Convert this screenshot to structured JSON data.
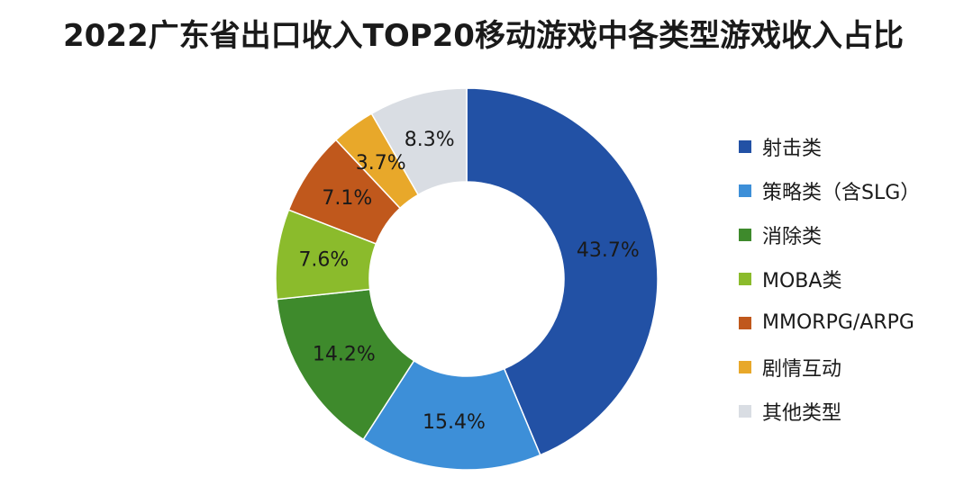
{
  "chart_data": {
    "type": "pie",
    "variant": "donut",
    "title": "2022广东省出口收入TOP20移动游戏中各类型游戏收入占比",
    "legend_position": "right",
    "slices": [
      {
        "name": "射击类",
        "value": 43.7,
        "label": "43.7%",
        "color": "#2251a5"
      },
      {
        "name": "策略类（含SLG）",
        "value": 15.4,
        "label": "15.4%",
        "color": "#3d8fd8"
      },
      {
        "name": "消除类",
        "value": 14.2,
        "label": "14.2%",
        "color": "#3e8a2c"
      },
      {
        "name": "MOBA类",
        "value": 7.6,
        "label": "7.6%",
        "color": "#8bbb2c"
      },
      {
        "name": "MMORPG/ARPG",
        "value": 7.1,
        "label": "7.1%",
        "color": "#c0581c"
      },
      {
        "name": "剧情互动",
        "value": 3.7,
        "label": "3.7%",
        "color": "#e8a82a"
      },
      {
        "name": "其他类型",
        "value": 8.3,
        "label": "8.3%",
        "color": "#d9dde3"
      }
    ]
  }
}
